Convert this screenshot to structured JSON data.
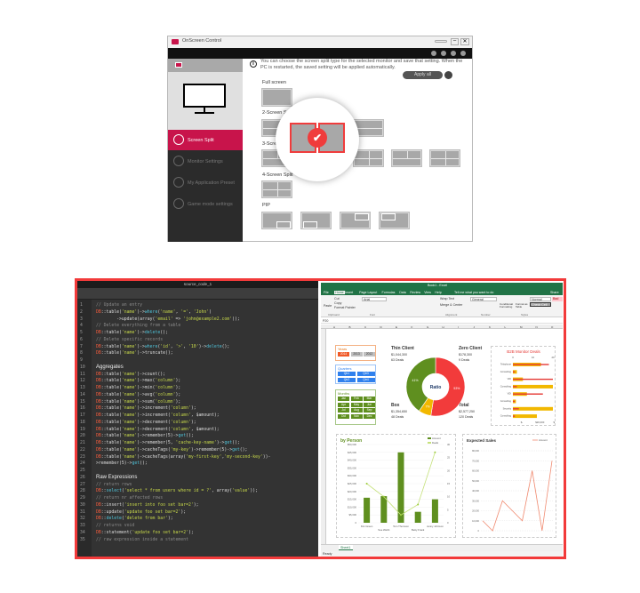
{
  "osc": {
    "title": "OnScreen Control",
    "info": [
      "You can choose the screen split type for the selected monitor and save that setting. When the",
      "PC is restarted, the saved setting will be applied automatically."
    ],
    "apply_all": "Apply all",
    "menu": [
      {
        "label": "Screen Split",
        "active": true
      },
      {
        "label": "Monitor Settings"
      },
      {
        "label": "My Application Preset"
      },
      {
        "label": "Game mode settings"
      }
    ],
    "sections": {
      "full": "Full screen",
      "two": "2-Screen Split",
      "three": "3-Screen Split",
      "four": "4-Screen Split",
      "pip": "PIP"
    },
    "accent": "#c8144b",
    "selected_icon": "check-icon"
  },
  "code": {
    "title": "source_code_1",
    "lines": [
      {
        "n": "1",
        "k": "comment",
        "t": "// Update an entry"
      },
      {
        "n": "2",
        "k": "code",
        "t": "DB::table('name')->where('name', '=', 'John')"
      },
      {
        "n": "3",
        "k": "code",
        "t": "        ->update(array('email' => 'john@example2.com'));"
      },
      {
        "n": "4",
        "k": "comment",
        "t": "// Delete everything from a table"
      },
      {
        "n": "5",
        "k": "code",
        "t": "DB::table('name')->delete();"
      },
      {
        "n": "6",
        "k": "comment",
        "t": "// Delete specific records"
      },
      {
        "n": "7",
        "k": "code",
        "t": "DB::table('name')->where('id', '>', '10')->delete();"
      },
      {
        "n": "8",
        "k": "code",
        "t": "DB::table('name')->truncate();"
      },
      {
        "n": "9",
        "k": "blank",
        "t": ""
      },
      {
        "n": "10",
        "k": "header",
        "t": "Aggregates"
      },
      {
        "n": "11",
        "k": "code",
        "t": "DB::table('name')->count();"
      },
      {
        "n": "12",
        "k": "code",
        "t": "DB::table('name')->max('column');"
      },
      {
        "n": "13",
        "k": "code",
        "t": "DB::table('name')->min('column');"
      },
      {
        "n": "14",
        "k": "code",
        "t": "DB::table('name')->avg('column');"
      },
      {
        "n": "15",
        "k": "code",
        "t": "DB::table('name')->sum('column');"
      },
      {
        "n": "16",
        "k": "code",
        "t": "DB::table('name')->increment('column');"
      },
      {
        "n": "17",
        "k": "code",
        "t": "DB::table('name')->increment('column', $amount);"
      },
      {
        "n": "18",
        "k": "code",
        "t": "DB::table('name')->decrement('column');"
      },
      {
        "n": "19",
        "k": "code",
        "t": "DB::table('name')->decrement('column', $amount);"
      },
      {
        "n": "20",
        "k": "code",
        "t": "DB::table('name')->remember(5)->get();"
      },
      {
        "n": "21",
        "k": "code",
        "t": "DB::table('name')->remember(5, 'cache-key-name')->get();"
      },
      {
        "n": "22",
        "k": "code",
        "t": "DB::table('name')->cacheTags('my-key')->remember(5)->get();"
      },
      {
        "n": "23",
        "k": "code",
        "t": "DB::table('name')->cacheTags(array('my-first-key','my-second-key'))-"
      },
      {
        "n": "24",
        "k": "code",
        "t": ">remember(5)->get();"
      },
      {
        "n": "25",
        "k": "blank",
        "t": ""
      },
      {
        "n": "26",
        "k": "header",
        "t": "Raw Expressions"
      },
      {
        "n": "27",
        "k": "comment",
        "t": "// return rows"
      },
      {
        "n": "28",
        "k": "code",
        "t": "DB::select('select * from users where id = ?', array('value'));"
      },
      {
        "n": "29",
        "k": "comment",
        "t": "// return nr affected rows"
      },
      {
        "n": "30",
        "k": "code",
        "t": "DB::insert('insert into foo set bar=2');"
      },
      {
        "n": "31",
        "k": "code",
        "t": "DB::update('update foo set bar=2');"
      },
      {
        "n": "32",
        "k": "code",
        "t": "DB::delete('delete from bar');"
      },
      {
        "n": "33",
        "k": "comment",
        "t": "// returns void"
      },
      {
        "n": "34",
        "k": "code",
        "t": "DB::statement('update foo set bar=2');"
      },
      {
        "n": "35",
        "k": "comment",
        "t": "// raw expression inside a statement"
      }
    ]
  },
  "excel": {
    "title": "Book1 - Excel",
    "tabs": [
      "File",
      "Home",
      "Insert",
      "Page Layout",
      "Formulas",
      "Data",
      "Review",
      "View",
      "Help"
    ],
    "tell_me": "Tell me what you want to do",
    "share": "Share",
    "ribbon": {
      "paste": "Paste",
      "cut": "Cut",
      "copy": "Copy",
      "format_painter": "Format Painter",
      "font": "Arial",
      "wrap": "Wrap Text",
      "merge": "Merge & Center",
      "number_format": "General",
      "cond": "Conditional Formatting",
      "fmt_table": "Format as Table",
      "style_normal": "Normal",
      "style_check": "Check Cell",
      "style_bad": "Bad",
      "groups": [
        "Clipboard",
        "Font",
        "Alignment",
        "Number",
        "Styles"
      ]
    },
    "name_box": "P20",
    "columns": [
      "A",
      "B",
      "C",
      "D",
      "E",
      "F",
      "G",
      "H",
      "I",
      "J",
      "K",
      "L",
      "M",
      "N",
      "O"
    ],
    "sheet_tab": "Sheet1",
    "status": "Ready",
    "slicers": {
      "years": {
        "title": "Years",
        "items": [
          "2014",
          "2013",
          "2012"
        ],
        "selected": "2014",
        "color": "#f4b183"
      },
      "quarters": {
        "title": "Quarters",
        "items": [
          "Qtr1",
          "Qtr3",
          "Qtr2",
          "Qtr4"
        ],
        "color": "#2f80ed"
      },
      "months": {
        "title": "Months",
        "items": [
          "Jan",
          "Feb",
          "Mar",
          "Apr",
          "May",
          "Jun",
          "Jul",
          "Aug",
          "Sep",
          "Oct",
          "Nov",
          "Dec"
        ],
        "color": "#5f8f1f"
      }
    },
    "kpis": {
      "thin": {
        "title": "Thin Client",
        "amount": "$1,044,300",
        "deals": "63 Deals"
      },
      "zero": {
        "title": "Zero Client",
        "amount": "$178,300",
        "deals": "9 Deals"
      },
      "box": {
        "title": "Box",
        "amount": "$1,354,650",
        "deals": "48 Deals"
      },
      "total": {
        "title": "Total",
        "amount": "$2,577,250",
        "deals": "120 Deals"
      }
    }
  },
  "chart_data": [
    {
      "type": "pie",
      "title": "",
      "center_label": "Ratio",
      "categories": [
        "Box",
        "Zero Client",
        "Thin Client"
      ],
      "values": [
        1354650,
        178300,
        1044300
      ],
      "labels": [
        "53%",
        "7%",
        "41%"
      ],
      "colors": [
        "#f23b3b",
        "#f2b800",
        "#5f8f1f"
      ]
    },
    {
      "type": "bar",
      "title": "B2B Monitor Deals",
      "categories": [
        "Telephone",
        "Consulting",
        "VDI",
        "Consulting",
        "VDI",
        "Consulting",
        "Security",
        "Consulting"
      ],
      "series": [
        {
          "values": [
            28000,
            4000,
            10000,
            40000,
            14000,
            3000,
            40000,
            24000
          ],
          "color": "#f2b800"
        },
        {
          "values": [
            18,
            1,
            20,
            2,
            15,
            1,
            3,
            1
          ],
          "color": "#e53935"
        }
      ],
      "top_ticks": [
        "0",
        "10",
        "20"
      ],
      "bottom_ticks": [
        "$-",
        "$20,000",
        "$40,000"
      ]
    },
    {
      "type": "bar",
      "title": "by Person",
      "categories": [
        "Kim Green",
        "Sue Webb",
        "Tom Thomson",
        "Betty Frank",
        "Jenny Johnson"
      ],
      "series": [
        {
          "name": "Amount",
          "values": [
            16000,
            17000,
            45000,
            7000,
            15000
          ],
          "color": "#5f8f1f"
        },
        {
          "name": "Deals",
          "values": [
            15,
            10,
            3,
            7,
            27
          ],
          "color": "#c5e17a"
        }
      ],
      "yticks": [
        "0",
        "$5,000",
        "$10,000",
        "$15,000",
        "$20,000",
        "$25,000",
        "$30,000",
        "$35,000",
        "$40,000",
        "$45,000",
        "$50,000"
      ],
      "ylim": [
        0,
        50000
      ],
      "y2ticks": [
        "0",
        "5",
        "10",
        "15",
        "20",
        "25",
        "30"
      ],
      "y2lim": [
        0,
        30
      ]
    },
    {
      "type": "line",
      "title": "Expected Sales",
      "series": [
        {
          "name": "Amount",
          "values": [
            10000,
            0,
            30000,
            20000,
            10000,
            60000,
            0,
            70000
          ],
          "color": "#f08a70"
        }
      ],
      "yticks": [
        "0",
        "10,000",
        "20,000",
        "30,000",
        "40,000",
        "50,000",
        "60,000",
        "70,000",
        "80,000"
      ],
      "ylim": [
        0,
        80000
      ]
    }
  ]
}
